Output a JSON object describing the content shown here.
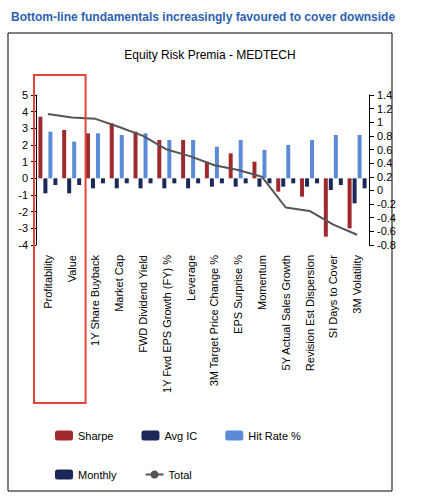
{
  "chart_data": {
    "type": "bar",
    "title": "Bottom-line fundamentals increasingly favoured to cover downside",
    "subtitle": "Equity Risk Premia - MEDTECH",
    "categories": [
      "Profitability",
      "Value",
      "1Y Share Buyback",
      "Market Cap",
      "FWD Dividend Yield",
      "1Y Fwd EPS Growth (FY) %",
      "Leverage",
      "3M Target Price Change %",
      "EPS Surprise %",
      "Momentum",
      "5Y Actual Sales Growth",
      "Revision Est Dispersion",
      "SI Days to Cover",
      "3M Volatility"
    ],
    "series": [
      {
        "name": "Sharpe",
        "type": "bar",
        "color": "#9e2a2f",
        "values": [
          3.7,
          2.9,
          2.7,
          3.3,
          2.8,
          2.3,
          2.3,
          1.0,
          1.5,
          1.0,
          -0.8,
          -1.1,
          -3.5,
          -3.0
        ]
      },
      {
        "name": "Avg IC",
        "type": "bar",
        "color": "#1c2857",
        "values": [
          -0.9,
          -0.9,
          -0.6,
          -0.6,
          -0.6,
          -0.6,
          -0.6,
          -0.5,
          -0.5,
          -0.5,
          -0.5,
          -0.5,
          -0.7,
          -1.5
        ]
      },
      {
        "name": "Hit Rate %",
        "type": "bar",
        "color": "#5b8bd8",
        "values": [
          2.8,
          2.2,
          2.7,
          2.6,
          2.7,
          2.3,
          2.3,
          1.9,
          2.3,
          1.7,
          2.0,
          2.3,
          2.6,
          2.6
        ]
      },
      {
        "name": "Monthly",
        "type": "bar",
        "color": "#1c2857",
        "values": [
          -0.4,
          -0.4,
          -0.3,
          -0.3,
          -0.3,
          -0.3,
          -0.3,
          -0.3,
          -0.3,
          -0.3,
          -0.3,
          -0.3,
          -0.4,
          -0.6
        ]
      },
      {
        "name": "Total",
        "type": "line",
        "axis": "y2",
        "color": "#555555",
        "values": [
          1.12,
          1.07,
          1.05,
          0.93,
          0.8,
          0.6,
          0.5,
          0.37,
          0.3,
          0.2,
          -0.25,
          -0.3,
          -0.5,
          -0.65
        ]
      }
    ],
    "ylim": [
      -4,
      5
    ],
    "yticks": [
      -4,
      -3,
      -2,
      -1,
      0,
      1,
      2,
      3,
      4,
      5
    ],
    "y2lim": [
      -0.8,
      1.4
    ],
    "y2ticks": [
      -0.8,
      -0.6,
      -0.4,
      -0.2,
      0,
      0.2,
      0.4,
      0.6,
      0.8,
      1,
      1.2,
      1.4
    ],
    "grid": false,
    "legend": "bottom"
  }
}
